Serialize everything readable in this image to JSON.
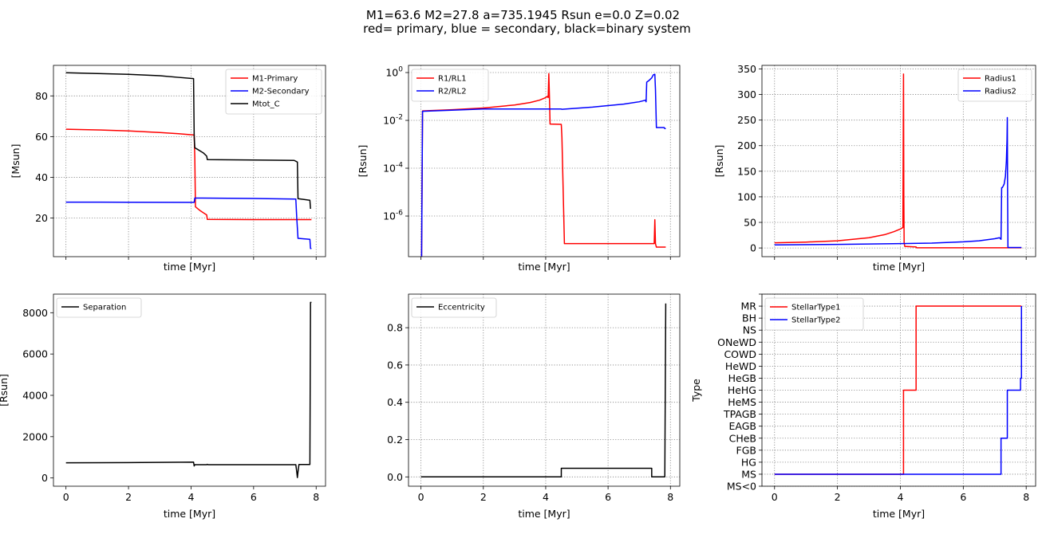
{
  "suptitle": {
    "line1": "M1=63.6    M2=27.8    a=735.1945 Rsun   e=0.0 Z=0.02",
    "line2": "red= primary, blue = secondary, black=binary system"
  },
  "colors": {
    "primary": "#ff0000",
    "secondary": "#0000ff",
    "system": "#000000"
  },
  "chart_data": [
    {
      "id": "mass",
      "type": "line",
      "xlabel": "time [Myr]",
      "ylabel": "[Msun]",
      "xlim": [
        -0.4,
        8.3
      ],
      "ylim": [
        1,
        95
      ],
      "xticks": [
        0,
        2,
        4,
        6,
        8
      ],
      "show_xticklabels": false,
      "yticks": [
        20,
        40,
        60,
        80
      ],
      "yticklabels": [
        "20",
        "40",
        "60",
        "80"
      ],
      "yscale": "linear",
      "grid": true,
      "legend_position": "top-right",
      "series": [
        {
          "name": "M1-Primary",
          "color": "#ff0000",
          "x": [
            0,
            1,
            2,
            3,
            3.6,
            4.1,
            4.12,
            4.14,
            4.3,
            4.5,
            4.52,
            6,
            7.85
          ],
          "y": [
            63.6,
            63.3,
            62.8,
            62,
            61.4,
            60.8,
            50,
            25.5,
            23.5,
            21.5,
            19.3,
            19.2,
            19.2
          ]
        },
        {
          "name": "M2-Secondary",
          "color": "#0000ff",
          "x": [
            0,
            2,
            4.1,
            4.12,
            6,
            7.35,
            7.38,
            7.42,
            7.8,
            7.82,
            7.85
          ],
          "y": [
            27.8,
            27.75,
            27.7,
            29.8,
            29.6,
            29.3,
            20,
            10,
            9.5,
            5,
            5
          ]
        },
        {
          "name": "Mtot_C",
          "color": "#000000",
          "x": [
            0,
            1,
            2,
            3,
            3.6,
            4.08,
            4.1,
            4.12,
            4.2,
            4.4,
            4.5,
            4.52,
            6,
            7.3,
            7.4,
            7.42,
            7.8,
            7.82
          ],
          "y": [
            91.4,
            91,
            90.6,
            89.9,
            89.1,
            88.5,
            60,
            54.5,
            53.8,
            51.9,
            50.4,
            48.7,
            48.5,
            48.3,
            47.5,
            29.5,
            28.7,
            24.5
          ]
        }
      ]
    },
    {
      "id": "roche",
      "type": "line",
      "xlabel": "time [Myr]",
      "ylabel": "[Rsun]",
      "xlim": [
        -0.4,
        8.3
      ],
      "ylim": [
        2e-08,
        2
      ],
      "xticks": [
        0,
        2,
        4,
        6,
        8
      ],
      "show_xticklabels": false,
      "yticks": [
        1e-06,
        0.0001,
        0.01,
        1
      ],
      "yticklabels": [
        "10^-6",
        "10^-4",
        "10^-2",
        "10^0"
      ],
      "yscale": "log",
      "grid": true,
      "legend_position": "top-left",
      "series": [
        {
          "name": "R1/RL1",
          "color": "#ff0000",
          "x": [
            0,
            0.02,
            0.05,
            1,
            2,
            3,
            3.5,
            3.8,
            4.0,
            4.05,
            4.08,
            4.1,
            4.12,
            4.14,
            4.5,
            4.52,
            4.6,
            7.4,
            7.48,
            7.5,
            7.52,
            7.55,
            7.85
          ],
          "y": [
            2e-08,
            2e-08,
            0.025,
            0.028,
            0.033,
            0.044,
            0.056,
            0.07,
            0.09,
            0.1,
            0.09,
            0.9,
            0.1,
            0.007,
            0.0068,
            0.002,
            7e-08,
            7e-08,
            7e-08,
            7e-07,
            7e-08,
            5e-08,
            5e-08
          ]
        },
        {
          "name": "R2/RL2",
          "color": "#0000ff",
          "x": [
            0,
            0.02,
            0.05,
            2,
            4.5,
            4.52,
            5.5,
            6.5,
            7.0,
            7.2,
            7.22,
            7.24,
            7.3,
            7.4,
            7.45,
            7.5,
            7.52,
            7.55,
            7.6,
            7.8,
            7.82,
            7.85
          ],
          "y": [
            2e-08,
            2e-08,
            0.024,
            0.03,
            0.03,
            0.029,
            0.036,
            0.048,
            0.06,
            0.07,
            0.06,
            0.4,
            0.45,
            0.6,
            0.8,
            0.85,
            0.2,
            0.005,
            0.005,
            0.005,
            0.0045,
            0.0046
          ]
        }
      ]
    },
    {
      "id": "radius",
      "type": "line",
      "xlabel": "time [Myr]",
      "ylabel": "[Rsun]",
      "xlim": [
        -0.4,
        8.3
      ],
      "ylim": [
        -17,
        357
      ],
      "xticks": [
        0,
        2,
        4,
        6,
        8
      ],
      "show_xticklabels": false,
      "yticks": [
        0,
        50,
        100,
        150,
        200,
        250,
        300,
        350
      ],
      "yticklabels": [
        "0",
        "50",
        "100",
        "150",
        "200",
        "250",
        "300",
        "350"
      ],
      "yscale": "linear",
      "grid": true,
      "legend_position": "top-right",
      "series": [
        {
          "name": "Radius1",
          "color": "#ff0000",
          "x": [
            0,
            1,
            2,
            3,
            3.5,
            3.8,
            4.0,
            4.08,
            4.1,
            4.11,
            4.12,
            4.14,
            4.5,
            4.52,
            7.85
          ],
          "y": [
            10,
            11.5,
            14,
            20,
            26,
            32,
            37,
            40,
            340,
            100,
            10,
            3,
            2,
            0.3,
            0.3
          ]
        },
        {
          "name": "Radius2",
          "color": "#0000ff",
          "x": [
            0,
            2,
            4,
            5,
            6,
            6.5,
            7.0,
            7.15,
            7.2,
            7.22,
            7.24,
            7.26,
            7.3,
            7.34,
            7.37,
            7.39,
            7.4,
            7.41,
            7.42,
            7.85
          ],
          "y": [
            6,
            7,
            8.5,
            9.5,
            12,
            14,
            18,
            20,
            17,
            118,
            118,
            120,
            125,
            140,
            170,
            210,
            255,
            100,
            1,
            1
          ]
        }
      ]
    },
    {
      "id": "separation",
      "type": "line",
      "xlabel": "time [Myr]",
      "ylabel": "[Rsun]",
      "xlim": [
        -0.4,
        8.3
      ],
      "ylim": [
        -400,
        8900
      ],
      "xticks": [
        0,
        2,
        4,
        6,
        8
      ],
      "xticklabels": [
        "0",
        "2",
        "4",
        "6",
        "8"
      ],
      "show_xticklabels": true,
      "yticks": [
        0,
        2000,
        4000,
        6000,
        8000
      ],
      "yticklabels": [
        "0",
        "2000",
        "4000",
        "6000",
        "8000"
      ],
      "yscale": "linear",
      "grid": false,
      "legend_position": "top-left",
      "series": [
        {
          "name": "Separation",
          "color": "#000000",
          "x": [
            0,
            2,
            4.08,
            4.1,
            4.12,
            4.5,
            4.52,
            4.55,
            6,
            7.35,
            7.38,
            7.4,
            7.42,
            7.45,
            7.8,
            7.82,
            7.85
          ],
          "y": [
            735,
            745,
            765,
            580,
            640,
            640,
            660,
            640,
            640,
            640,
            300,
            20,
            300,
            650,
            650,
            8500,
            8500
          ]
        }
      ]
    },
    {
      "id": "eccentricity",
      "type": "line",
      "xlabel": "time [Myr]",
      "ylabel": "",
      "xlim": [
        -0.4,
        8.3
      ],
      "ylim": [
        -0.05,
        0.98
      ],
      "xticks": [
        0,
        2,
        4,
        6,
        8
      ],
      "xticklabels": [
        "0",
        "2",
        "4",
        "6",
        "8"
      ],
      "show_xticklabels": true,
      "yticks": [
        0,
        0.2,
        0.4,
        0.6,
        0.8
      ],
      "yticklabels": [
        "0.0",
        "0.2",
        "0.4",
        "0.6",
        "0.8"
      ],
      "yscale": "linear",
      "grid": true,
      "legend_position": "top-left",
      "series": [
        {
          "name": "Eccentricity",
          "color": "#000000",
          "x": [
            0,
            4.5,
            4.5,
            7.4,
            7.4,
            7.82,
            7.85,
            7.85
          ],
          "y": [
            0,
            0,
            0.046,
            0.046,
            0,
            0,
            0.93,
            0.93
          ]
        }
      ]
    },
    {
      "id": "stellartype",
      "type": "line",
      "xlabel": "time [Myr]",
      "ylabel": "Type",
      "xlim": [
        -0.4,
        8.3
      ],
      "ylim": [
        -1,
        15
      ],
      "xticks": [
        0,
        2,
        4,
        6,
        8
      ],
      "xticklabels": [
        "0",
        "2",
        "4",
        "6",
        "8"
      ],
      "show_xticklabels": true,
      "yticks": [
        -1,
        0,
        1,
        2,
        3,
        4,
        5,
        6,
        7,
        8,
        9,
        10,
        11,
        12,
        13,
        14,
        15
      ],
      "yticklabels": [
        "MS<0",
        "MS",
        "HG",
        "FGB",
        "CHeB",
        "EAGB",
        "TPAGB",
        "HeMS",
        "HeHG",
        "HeGB",
        "HeWD",
        "COWD",
        "ONeWD",
        "NS",
        "BH",
        "MR",
        ""
      ],
      "yscale": "linear",
      "grid": true,
      "legend_position": "top-left",
      "series": [
        {
          "name": "StellarType1",
          "color": "#ff0000",
          "x": [
            0,
            4.1,
            4.1,
            4.5,
            4.5,
            7.85
          ],
          "y": [
            0,
            0,
            7,
            7,
            14,
            14
          ]
        },
        {
          "name": "StellarType2",
          "color": "#0000ff",
          "x": [
            0,
            7.2,
            7.2,
            7.4,
            7.4,
            7.82,
            7.82,
            7.85,
            7.85
          ],
          "y": [
            0,
            0,
            3,
            3,
            7,
            7,
            8,
            8,
            14
          ]
        }
      ]
    }
  ]
}
